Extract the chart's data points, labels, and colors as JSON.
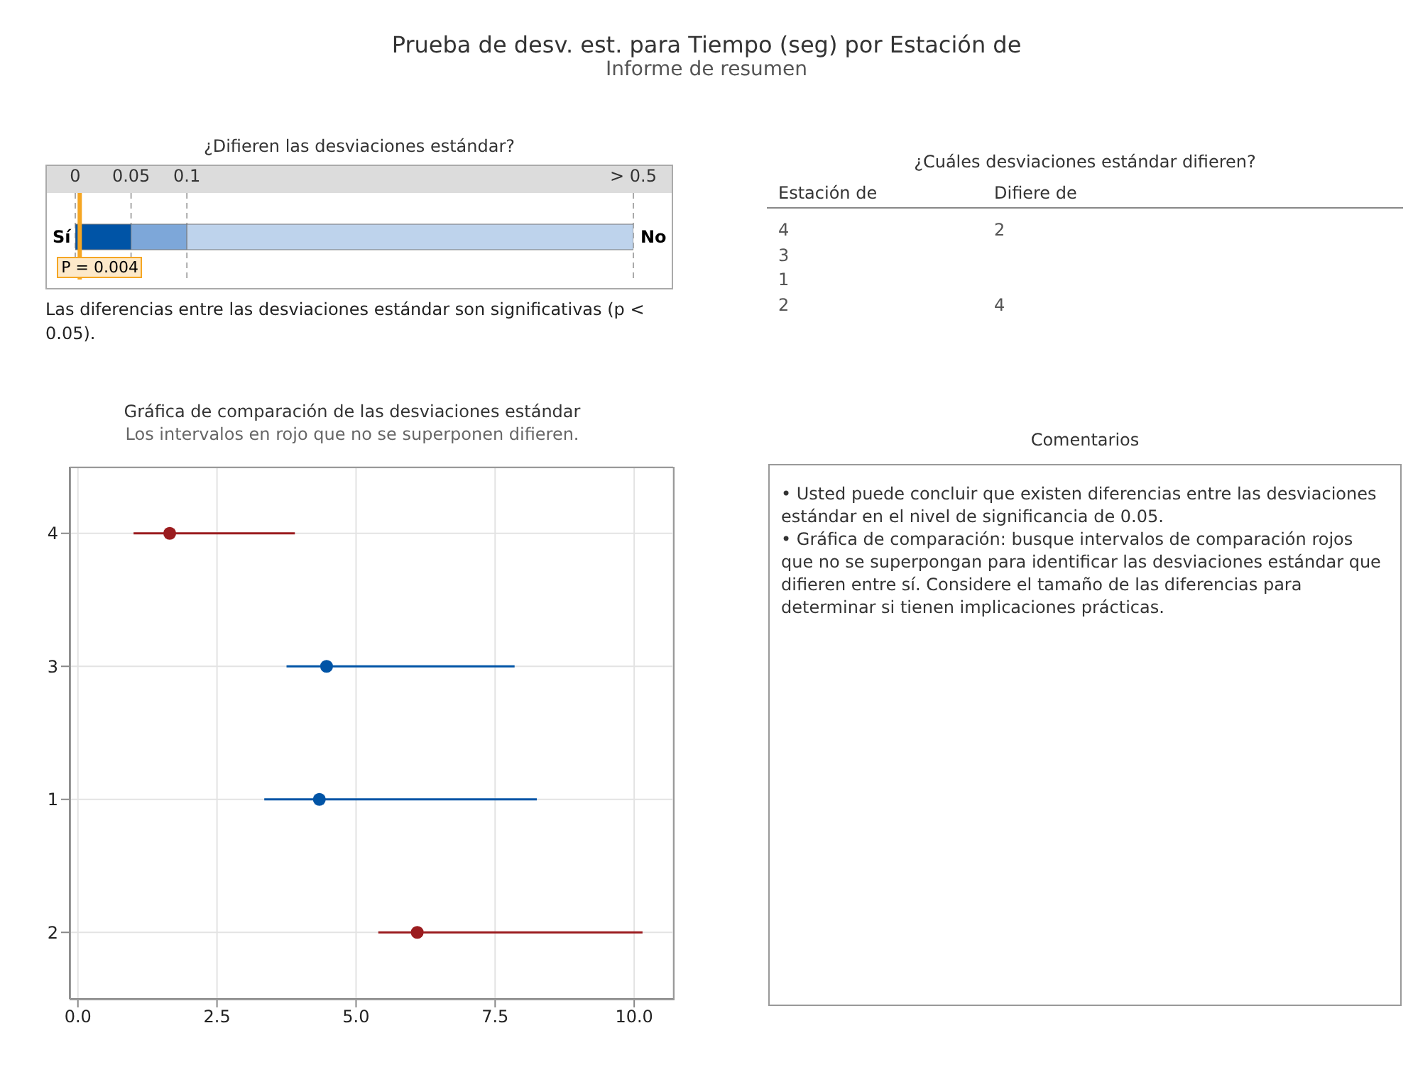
{
  "chart_data": [
    {
      "type": "other",
      "title": "Prueba de desv. est. para Tiempo (seg) por Estación de",
      "subtitle": "Informe de resumen"
    },
    {
      "type": "bar",
      "title": "¿Difieren las desviaciones estándar?",
      "orientation": "horizontal",
      "stacked": true,
      "categories": [
        null
      ],
      "series": [
        {
          "color": "#0054a6",
          "values": [
            0.05
          ]
        },
        {
          "color": "#7da7d9",
          "values": [
            0.05
          ]
        },
        {
          "color": "#bed3ec",
          "values": [
            0.4
          ]
        }
      ],
      "xlim": [
        0,
        0.5
      ],
      "xticks": [
        0,
        0.05,
        0.1,
        {
          "value": 0.5,
          "label": "> 0.5"
        }
      ],
      "grid": "x",
      "tick_labels": "x",
      "ref_lines": [
        {
          "axis": "x",
          "value": 0.004,
          "color": "#f5a623"
        }
      ],
      "annotations": [
        "Sí",
        "No",
        {
          "text": "P = 0.004",
          "x": 0.004
        },
        "Las diferencias entre las desviaciones estándar son significativas (p < 0.05)."
      ]
    },
    {
      "type": "other",
      "title": "¿Cuáles desviaciones estándar difieren?",
      "categories": [
        "Estación de",
        "Difiere de"
      ],
      "y_categories": [
        "4",
        "3",
        "1",
        "2"
      ],
      "cell_labels": [
        [
          "2"
        ],
        [
          null
        ],
        [
          null
        ],
        [
          "4"
        ]
      ]
    },
    {
      "type": "scatter",
      "title": "Gráfica de comparación de las desviaciones estándar",
      "subtitle": "Los intervalos en rojo que no se superponen difieren.",
      "orientation": "horizontal",
      "categories": [
        "4",
        "3",
        "1",
        "2"
      ],
      "values": [
        1.65,
        4.47,
        4.34,
        6.1
      ],
      "errors": [
        [
          1.0,
          3.9
        ],
        [
          3.75,
          7.85
        ],
        [
          3.35,
          8.25
        ],
        [
          5.4,
          10.15
        ]
      ],
      "colors": [
        "#9b1c1f",
        "#0054a6",
        "#0054a6",
        "#9b1c1f"
      ],
      "xlim": [
        -0.15,
        10.7
      ],
      "xticks": [
        {
          "value": 0,
          "label": "0.0"
        },
        2.5,
        {
          "value": 5,
          "label": "5.0"
        },
        7.5,
        {
          "value": 10,
          "label": "10.0"
        }
      ],
      "grid": true,
      "marker": "circle"
    },
    {
      "type": "other",
      "title": "Comentarios",
      "annotations": [
        "•  Usted puede concluir que existen diferencias entre las desviaciones estándar en el nivel de significancia de 0.05.",
        "•  Gráfica de comparación: busque intervalos de comparación rojos que no se superpongan para identificar las desviaciones estándar que difieren entre sí. Considere el tamaño de las diferencias para determinar si tienen implicaciones prácticas."
      ]
    }
  ]
}
